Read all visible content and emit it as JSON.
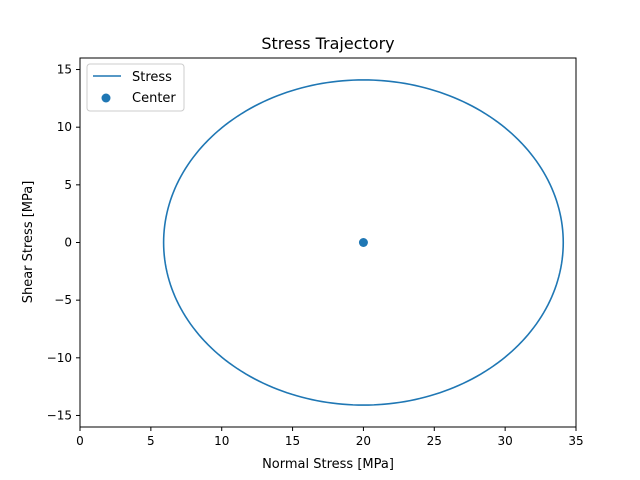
{
  "chart_data": {
    "type": "line",
    "title": "Stress Trajectory",
    "xlabel": "Normal Stress [MPa]",
    "ylabel": "Shear Stress [MPa]",
    "xlim": [
      0,
      35
    ],
    "ylim": [
      -16,
      16
    ],
    "xticks": [
      0,
      5,
      10,
      15,
      20,
      25,
      30,
      35
    ],
    "yticks": [
      -15,
      -10,
      -5,
      0,
      5,
      10,
      15
    ],
    "grid": false,
    "legend_position": "top-left",
    "series": [
      {
        "name": "Stress",
        "kind": "line",
        "shape": "circle",
        "center": [
          20,
          0
        ],
        "radius_x": 14.1,
        "radius_y": 14.1,
        "color": "#1f77b4"
      },
      {
        "name": "Center",
        "kind": "scatter",
        "points": [
          [
            20,
            0
          ]
        ],
        "color": "#1f77b4"
      }
    ]
  }
}
